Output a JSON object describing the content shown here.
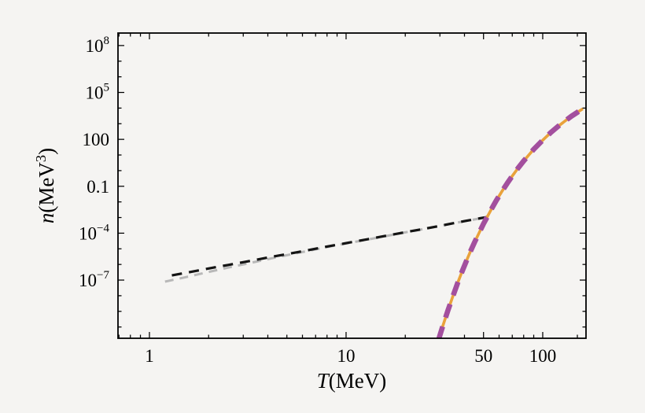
{
  "figure": {
    "background": "#f5f4f2",
    "frame_color": "#000000",
    "tick_color": "#000000"
  },
  "chart_data": {
    "type": "line",
    "title": "",
    "xlabel": {
      "var": "T",
      "unit": "(MeV)"
    },
    "ylabel": {
      "var": "n",
      "unit_pre": "(MeV",
      "unit_sup": "3",
      "unit_post": ")"
    },
    "legend": "none",
    "grid": false,
    "x_axis": {
      "scale": "log",
      "min": 0.692,
      "max": 166,
      "major_ticks": [
        {
          "label": "1",
          "value": 1
        },
        {
          "label": "10",
          "value": 10
        },
        {
          "label": "50",
          "value": 50
        },
        {
          "label": "100",
          "value": 100
        }
      ],
      "minor_ticks": [
        0.7,
        0.8,
        0.9,
        2,
        3,
        4,
        5,
        6,
        7,
        8,
        9,
        20,
        30,
        40,
        60,
        70,
        80,
        90,
        150
      ]
    },
    "y_axis": {
      "scale": "log",
      "min": 1.9e-11,
      "max": 630000000.0,
      "major_ticks": [
        {
          "base": "10",
          "exp": "8",
          "value": 100000000.0
        },
        {
          "base": "10",
          "exp": "5",
          "value": 100000.0
        },
        {
          "label": "100",
          "value": 100
        },
        {
          "label": "0.1",
          "value": 0.1
        },
        {
          "base": "10",
          "exp": "−4",
          "value": 0.0001
        },
        {
          "base": "10",
          "exp": "−7",
          "value": 1e-07
        }
      ],
      "minor_ticks_exp": [
        7,
        6,
        4,
        3,
        1,
        0,
        -2,
        -3,
        -5,
        -6,
        -8,
        -9,
        -10
      ]
    },
    "series": [
      {
        "name": "relic-approximation-gray",
        "color": "#b8b8b8",
        "width": 3.0,
        "dash": "11 8",
        "points": [
          [
            1.2,
            8e-08
          ],
          [
            1.5,
            1.45e-07
          ],
          [
            2,
            3.3e-07
          ],
          [
            2.5,
            6.2e-07
          ],
          [
            3,
            1e-06
          ],
          [
            4,
            2.2e-06
          ],
          [
            5,
            3.9e-06
          ],
          [
            6,
            6.2e-06
          ],
          [
            8,
            1.3e-05
          ],
          [
            10,
            2.2e-05
          ],
          [
            13,
            4e-05
          ],
          [
            16,
            6.6e-05
          ],
          [
            20,
            0.000112
          ],
          [
            25,
            0.000186
          ],
          [
            30,
            0.00029
          ],
          [
            35,
            0.000425
          ],
          [
            40,
            0.000585
          ],
          [
            44,
            0.00072
          ],
          [
            48,
            0.00088
          ],
          [
            50,
            0.00097
          ]
        ]
      },
      {
        "name": "number-density-black",
        "color": "#141414",
        "width": 3.2,
        "dash": "13 9",
        "points": [
          [
            1.3,
            2e-07
          ],
          [
            1.6,
            3.25e-07
          ],
          [
            2,
            5.5e-07
          ],
          [
            2.5,
            9.2e-07
          ],
          [
            3,
            1.4e-06
          ],
          [
            4,
            2.75e-06
          ],
          [
            5,
            4.6e-06
          ],
          [
            6,
            7e-06
          ],
          [
            8,
            1.4e-05
          ],
          [
            10,
            2.3e-05
          ],
          [
            13,
            4.2e-05
          ],
          [
            16,
            6.8e-05
          ],
          [
            20,
            0.000115
          ],
          [
            25,
            0.00019
          ],
          [
            30,
            0.000295
          ],
          [
            35,
            0.00043
          ],
          [
            40,
            0.00059
          ],
          [
            44,
            0.00073
          ],
          [
            48,
            0.00089
          ],
          [
            50,
            0.00098
          ],
          [
            52,
            0.00105
          ],
          [
            53.5,
            0.002
          ],
          [
            55,
            0.0037
          ],
          [
            58,
            0.012
          ],
          [
            62,
            0.047
          ],
          [
            66,
            0.156
          ],
          [
            70,
            0.45
          ],
          [
            75,
            1.47
          ],
          [
            80,
            4.1
          ],
          [
            90,
            23
          ],
          [
            100,
            89
          ],
          [
            110,
            275
          ],
          [
            120,
            692
          ],
          [
            130,
            1510
          ],
          [
            140,
            3020
          ],
          [
            150,
            5370
          ],
          [
            160,
            9120
          ]
        ]
      },
      {
        "name": "equilibrium-orange",
        "color": "#e9a23b",
        "width": 3.6,
        "dash": "",
        "points": [
          [
            29.5,
            1.45e-11
          ],
          [
            31,
            1.1e-10
          ],
          [
            33,
            1.2e-09
          ],
          [
            35,
            1e-08
          ],
          [
            37,
            6.9e-08
          ],
          [
            39,
            3.8e-07
          ],
          [
            41,
            1.8e-06
          ],
          [
            43,
            7.2e-06
          ],
          [
            45,
            2.6e-05
          ],
          [
            48,
            0.00014
          ],
          [
            50,
            0.0004
          ],
          [
            52,
            0.001
          ],
          [
            55,
            0.0037
          ],
          [
            58,
            0.012
          ],
          [
            62,
            0.047
          ],
          [
            66,
            0.156
          ],
          [
            70,
            0.45
          ],
          [
            75,
            1.47
          ],
          [
            80,
            4.1
          ],
          [
            90,
            23
          ],
          [
            100,
            89
          ],
          [
            110,
            275
          ],
          [
            120,
            692
          ],
          [
            130,
            1510
          ],
          [
            140,
            3020
          ],
          [
            150,
            5370
          ],
          [
            160,
            9120
          ]
        ]
      },
      {
        "name": "equilibrium-purple",
        "color": "#a34f9e",
        "width": 6.6,
        "dash": "18 12",
        "points": [
          [
            29.5,
            1.45e-11
          ],
          [
            31,
            1.1e-10
          ],
          [
            33,
            1.2e-09
          ],
          [
            35,
            1e-08
          ],
          [
            37,
            6.9e-08
          ],
          [
            39,
            3.8e-07
          ],
          [
            41,
            1.8e-06
          ],
          [
            43,
            7.2e-06
          ],
          [
            45,
            2.6e-05
          ],
          [
            48,
            0.00014
          ],
          [
            50,
            0.0004
          ],
          [
            52,
            0.001
          ],
          [
            55,
            0.0037
          ],
          [
            58,
            0.012
          ],
          [
            62,
            0.047
          ],
          [
            66,
            0.156
          ],
          [
            70,
            0.45
          ],
          [
            75,
            1.47
          ],
          [
            80,
            4.1
          ],
          [
            90,
            23
          ],
          [
            100,
            89
          ],
          [
            110,
            275
          ],
          [
            120,
            692
          ],
          [
            130,
            1510
          ],
          [
            140,
            3020
          ],
          [
            150,
            5370
          ],
          [
            160,
            9120
          ]
        ]
      }
    ]
  }
}
